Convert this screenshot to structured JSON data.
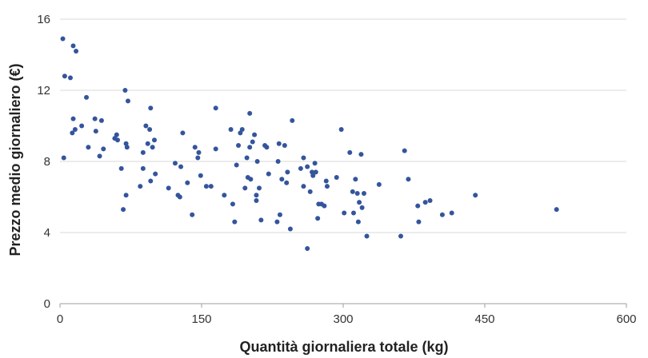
{
  "chart_data": {
    "type": "scatter",
    "title": "",
    "xlabel": "Quantità giornaliera totale (kg)",
    "ylabel": "Prezzo medio giornaliero (€)",
    "xlim": [
      0,
      600
    ],
    "ylim": [
      0,
      16
    ],
    "xticks": [
      0,
      150,
      300,
      450,
      600
    ],
    "yticks": [
      0,
      4,
      8,
      12,
      16
    ],
    "grid": "horizontal",
    "legend": "none",
    "color": "#34559c",
    "series": [
      {
        "points": [
          [
            3,
            14.9
          ],
          [
            5,
            12.8
          ],
          [
            11,
            12.7
          ],
          [
            14,
            14.5
          ],
          [
            17,
            14.2
          ],
          [
            4,
            8.2
          ],
          [
            14,
            10.4
          ],
          [
            16,
            9.8
          ],
          [
            13,
            9.6
          ],
          [
            23,
            10.0
          ],
          [
            28,
            11.6
          ],
          [
            30,
            8.8
          ],
          [
            37,
            10.4
          ],
          [
            38,
            9.7
          ],
          [
            42,
            8.3
          ],
          [
            44,
            10.3
          ],
          [
            46,
            8.7
          ],
          [
            58,
            9.3
          ],
          [
            60,
            9.5
          ],
          [
            61,
            9.2
          ],
          [
            65,
            7.6
          ],
          [
            67,
            5.3
          ],
          [
            69,
            12.0
          ],
          [
            70,
            6.1
          ],
          [
            70,
            9.0
          ],
          [
            71,
            8.8
          ],
          [
            72,
            11.4
          ],
          [
            85,
            6.6
          ],
          [
            88,
            7.6
          ],
          [
            88,
            8.5
          ],
          [
            91,
            10.0
          ],
          [
            93,
            9.0
          ],
          [
            95,
            9.8
          ],
          [
            96,
            11.0
          ],
          [
            96,
            6.9
          ],
          [
            98,
            8.8
          ],
          [
            100,
            9.2
          ],
          [
            101,
            7.3
          ],
          [
            115,
            6.5
          ],
          [
            122,
            7.9
          ],
          [
            125,
            6.1
          ],
          [
            127,
            6.0
          ],
          [
            128,
            7.7
          ],
          [
            130,
            9.6
          ],
          [
            135,
            6.8
          ],
          [
            140,
            5.0
          ],
          [
            143,
            8.8
          ],
          [
            146,
            8.2
          ],
          [
            147,
            8.5
          ],
          [
            149,
            7.2
          ],
          [
            155,
            6.6
          ],
          [
            160,
            6.6
          ],
          [
            165,
            11.0
          ],
          [
            165,
            8.7
          ],
          [
            174,
            6.1
          ],
          [
            181,
            9.8
          ],
          [
            183,
            5.6
          ],
          [
            185,
            4.6
          ],
          [
            187,
            7.8
          ],
          [
            189,
            8.9
          ],
          [
            191,
            9.6
          ],
          [
            193,
            9.8
          ],
          [
            196,
            6.5
          ],
          [
            198,
            8.2
          ],
          [
            199,
            7.1
          ],
          [
            201,
            10.7
          ],
          [
            201,
            8.8
          ],
          [
            202,
            7.0
          ],
          [
            204,
            9.1
          ],
          [
            206,
            9.5
          ],
          [
            208,
            6.1
          ],
          [
            208,
            5.8
          ],
          [
            209,
            8.0
          ],
          [
            211,
            6.5
          ],
          [
            213,
            4.7
          ],
          [
            217,
            8.9
          ],
          [
            219,
            8.8
          ],
          [
            221,
            7.3
          ],
          [
            230,
            4.6
          ],
          [
            231,
            8.0
          ],
          [
            232,
            9.0
          ],
          [
            233,
            5.0
          ],
          [
            235,
            7.0
          ],
          [
            238,
            8.9
          ],
          [
            240,
            6.8
          ],
          [
            241,
            7.4
          ],
          [
            244,
            4.2
          ],
          [
            246,
            10.3
          ],
          [
            255,
            7.6
          ],
          [
            258,
            6.6
          ],
          [
            258,
            8.2
          ],
          [
            262,
            7.7
          ],
          [
            262,
            3.1
          ],
          [
            265,
            6.3
          ],
          [
            267,
            7.4
          ],
          [
            268,
            7.2
          ],
          [
            270,
            7.9
          ],
          [
            271,
            7.4
          ],
          [
            273,
            4.8
          ],
          [
            274,
            5.6
          ],
          [
            277,
            5.6
          ],
          [
            280,
            5.5
          ],
          [
            282,
            6.9
          ],
          [
            283,
            6.6
          ],
          [
            293,
            7.1
          ],
          [
            298,
            9.8
          ],
          [
            301,
            5.1
          ],
          [
            307,
            8.5
          ],
          [
            310,
            6.3
          ],
          [
            311,
            5.1
          ],
          [
            313,
            7.0
          ],
          [
            315,
            6.2
          ],
          [
            316,
            4.6
          ],
          [
            317,
            5.7
          ],
          [
            319,
            8.4
          ],
          [
            320,
            5.4
          ],
          [
            322,
            6.2
          ],
          [
            325,
            3.8
          ],
          [
            338,
            6.7
          ],
          [
            361,
            3.8
          ],
          [
            365,
            8.6
          ],
          [
            369,
            7.0
          ],
          [
            379,
            5.5
          ],
          [
            380,
            4.6
          ],
          [
            387,
            5.7
          ],
          [
            392,
            5.8
          ],
          [
            405,
            5.0
          ],
          [
            415,
            5.1
          ],
          [
            440,
            6.1
          ],
          [
            526,
            5.3
          ]
        ]
      }
    ]
  }
}
